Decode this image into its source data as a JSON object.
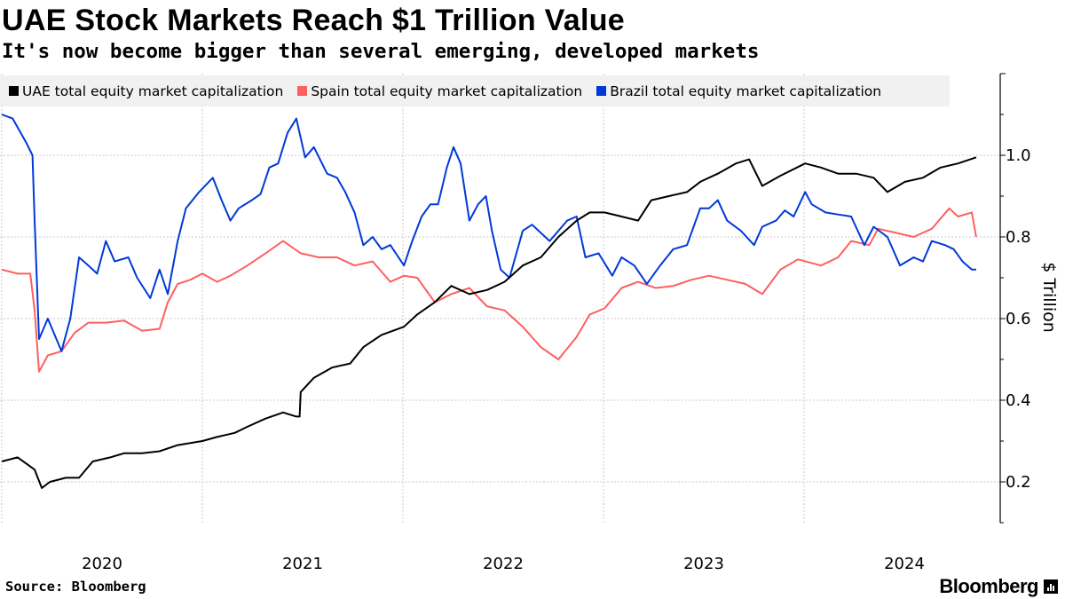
{
  "header": {
    "title": "UAE Stock Markets Reach $1 Trillion Value",
    "subtitle": "It's now become bigger than several emerging, developed markets"
  },
  "footer": {
    "source": "Source: Bloomberg",
    "logo": "Bloomberg"
  },
  "chart_data": {
    "type": "line",
    "title": "UAE Stock Markets Reach $1 Trillion Value",
    "subtitle": "It's now become bigger than several emerging, developed markets",
    "ylabel": "$ Trillion",
    "xlabel": "",
    "y_axis_side": "right",
    "ylim": [
      0.1,
      1.2
    ],
    "yticks": [
      "0.2",
      "0.4",
      "0.6",
      "0.8",
      "1.0"
    ],
    "xlim": [
      "2020-01-01",
      "2024-12-31"
    ],
    "xticks": [
      "2020",
      "2021",
      "2022",
      "2023",
      "2024"
    ],
    "grid": true,
    "legend_placement": "top",
    "series": [
      {
        "name": "UAE total equity market capitalization",
        "color": "#000000",
        "points": [
          [
            "2020-01-01",
            0.25
          ],
          [
            "2020-01-30",
            0.26
          ],
          [
            "2020-03-01",
            0.23
          ],
          [
            "2020-03-14",
            0.185
          ],
          [
            "2020-03-29",
            0.2
          ],
          [
            "2020-04-27",
            0.21
          ],
          [
            "2020-05-21",
            0.21
          ],
          [
            "2020-06-15",
            0.25
          ],
          [
            "2020-07-17",
            0.26
          ],
          [
            "2020-08-11",
            0.27
          ],
          [
            "2020-09-13",
            0.27
          ],
          [
            "2020-10-15",
            0.275
          ],
          [
            "2020-11-17",
            0.29
          ],
          [
            "2021-01-01",
            0.3
          ],
          [
            "2021-01-28",
            0.31
          ],
          [
            "2021-03-01",
            0.32
          ],
          [
            "2021-03-24",
            0.335
          ],
          [
            "2021-04-26",
            0.355
          ],
          [
            "2021-05-28",
            0.37
          ],
          [
            "2021-06-21",
            0.36
          ],
          [
            "2021-06-27",
            0.36
          ],
          [
            "2021-06-29",
            0.42
          ],
          [
            "2021-07-23",
            0.455
          ],
          [
            "2021-08-25",
            0.48
          ],
          [
            "2021-09-27",
            0.49
          ],
          [
            "2021-10-21",
            0.53
          ],
          [
            "2021-11-23",
            0.56
          ],
          [
            "2022-01-03",
            0.58
          ],
          [
            "2022-01-27",
            0.61
          ],
          [
            "2022-02-28",
            0.64
          ],
          [
            "2022-03-30",
            0.68
          ],
          [
            "2022-05-02",
            0.66
          ],
          [
            "2022-06-03",
            0.67
          ],
          [
            "2022-07-05",
            0.69
          ],
          [
            "2022-08-07",
            0.73
          ],
          [
            "2022-09-09",
            0.75
          ],
          [
            "2022-10-11",
            0.8
          ],
          [
            "2022-11-13",
            0.84
          ],
          [
            "2022-12-07",
            0.86
          ],
          [
            "2023-01-03",
            0.86
          ],
          [
            "2023-02-03",
            0.85
          ],
          [
            "2023-03-05",
            0.84
          ],
          [
            "2023-03-29",
            0.89
          ],
          [
            "2023-04-30",
            0.9
          ],
          [
            "2023-06-02",
            0.91
          ],
          [
            "2023-06-26",
            0.935
          ],
          [
            "2023-07-28",
            0.955
          ],
          [
            "2023-08-30",
            0.98
          ],
          [
            "2023-09-23",
            0.99
          ],
          [
            "2023-10-17",
            0.925
          ],
          [
            "2023-11-19",
            0.95
          ],
          [
            "2024-01-03",
            0.98
          ],
          [
            "2024-02-01",
            0.97
          ],
          [
            "2024-03-03",
            0.955
          ],
          [
            "2024-04-05",
            0.955
          ],
          [
            "2024-05-07",
            0.945
          ],
          [
            "2024-06-01",
            0.91
          ],
          [
            "2024-07-03",
            0.935
          ],
          [
            "2024-08-05",
            0.945
          ],
          [
            "2024-09-06",
            0.97
          ],
          [
            "2024-10-08",
            0.98
          ],
          [
            "2024-11-10",
            0.995
          ]
        ]
      },
      {
        "name": "Spain total equity market capitalization",
        "color": "#ff5f5f",
        "points": [
          [
            "2020-01-01",
            0.72
          ],
          [
            "2020-01-30",
            0.71
          ],
          [
            "2020-02-22",
            0.71
          ],
          [
            "2020-03-01",
            0.62
          ],
          [
            "2020-03-09",
            0.47
          ],
          [
            "2020-03-25",
            0.51
          ],
          [
            "2020-04-19",
            0.52
          ],
          [
            "2020-05-13",
            0.565
          ],
          [
            "2020-06-07",
            0.59
          ],
          [
            "2020-07-09",
            0.59
          ],
          [
            "2020-08-11",
            0.595
          ],
          [
            "2020-09-13",
            0.57
          ],
          [
            "2020-10-15",
            0.575
          ],
          [
            "2020-10-30",
            0.64
          ],
          [
            "2020-11-17",
            0.685
          ],
          [
            "2020-12-10",
            0.695
          ],
          [
            "2021-01-01",
            0.71
          ],
          [
            "2021-01-28",
            0.69
          ],
          [
            "2021-02-21",
            0.705
          ],
          [
            "2021-03-24",
            0.73
          ],
          [
            "2021-04-26",
            0.76
          ],
          [
            "2021-05-28",
            0.79
          ],
          [
            "2021-06-29",
            0.76
          ],
          [
            "2021-08-01",
            0.75
          ],
          [
            "2021-09-03",
            0.75
          ],
          [
            "2021-10-05",
            0.73
          ],
          [
            "2021-11-07",
            0.74
          ],
          [
            "2021-12-09",
            0.69
          ],
          [
            "2022-01-03",
            0.705
          ],
          [
            "2022-01-27",
            0.7
          ],
          [
            "2022-02-28",
            0.64
          ],
          [
            "2022-03-30",
            0.66
          ],
          [
            "2022-05-02",
            0.675
          ],
          [
            "2022-06-03",
            0.63
          ],
          [
            "2022-07-05",
            0.62
          ],
          [
            "2022-08-07",
            0.58
          ],
          [
            "2022-09-09",
            0.53
          ],
          [
            "2022-10-11",
            0.5
          ],
          [
            "2022-11-13",
            0.555
          ],
          [
            "2022-12-07",
            0.61
          ],
          [
            "2023-01-03",
            0.625
          ],
          [
            "2023-02-03",
            0.675
          ],
          [
            "2023-03-05",
            0.69
          ],
          [
            "2023-04-06",
            0.675
          ],
          [
            "2023-05-08",
            0.68
          ],
          [
            "2023-06-10",
            0.695
          ],
          [
            "2023-07-12",
            0.705
          ],
          [
            "2023-08-14",
            0.695
          ],
          [
            "2023-09-16",
            0.685
          ],
          [
            "2023-10-17",
            0.66
          ],
          [
            "2023-11-19",
            0.72
          ],
          [
            "2023-12-21",
            0.745
          ],
          [
            "2024-02-01",
            0.73
          ],
          [
            "2024-03-03",
            0.75
          ],
          [
            "2024-03-27",
            0.79
          ],
          [
            "2024-04-29",
            0.78
          ],
          [
            "2024-05-15",
            0.82
          ],
          [
            "2024-06-17",
            0.81
          ],
          [
            "2024-07-19",
            0.8
          ],
          [
            "2024-08-21",
            0.82
          ],
          [
            "2024-09-22",
            0.87
          ],
          [
            "2024-10-08",
            0.85
          ],
          [
            "2024-11-02",
            0.86
          ],
          [
            "2024-11-10",
            0.8
          ]
        ]
      },
      {
        "name": "Brazil total equity market capitalization",
        "color": "#0039d9",
        "points": [
          [
            "2020-01-01",
            1.1
          ],
          [
            "2020-01-21",
            1.09
          ],
          [
            "2020-02-15",
            1.03
          ],
          [
            "2020-02-26",
            1.0
          ],
          [
            "2020-03-01",
            0.84
          ],
          [
            "2020-03-09",
            0.55
          ],
          [
            "2020-03-25",
            0.6
          ],
          [
            "2020-04-19",
            0.52
          ],
          [
            "2020-05-05",
            0.6
          ],
          [
            "2020-05-21",
            0.75
          ],
          [
            "2020-06-07",
            0.73
          ],
          [
            "2020-06-23",
            0.71
          ],
          [
            "2020-07-09",
            0.79
          ],
          [
            "2020-07-25",
            0.74
          ],
          [
            "2020-08-19",
            0.75
          ],
          [
            "2020-09-04",
            0.7
          ],
          [
            "2020-09-28",
            0.65
          ],
          [
            "2020-10-15",
            0.72
          ],
          [
            "2020-10-30",
            0.66
          ],
          [
            "2020-11-17",
            0.79
          ],
          [
            "2020-12-02",
            0.87
          ],
          [
            "2020-12-26",
            0.91
          ],
          [
            "2021-01-20",
            0.945
          ],
          [
            "2021-02-05",
            0.89
          ],
          [
            "2021-02-21",
            0.84
          ],
          [
            "2021-03-08",
            0.87
          ],
          [
            "2021-04-01",
            0.89
          ],
          [
            "2021-04-17",
            0.905
          ],
          [
            "2021-05-03",
            0.97
          ],
          [
            "2021-05-19",
            0.98
          ],
          [
            "2021-06-05",
            1.055
          ],
          [
            "2021-06-21",
            1.09
          ],
          [
            "2021-07-07",
            0.995
          ],
          [
            "2021-07-23",
            1.02
          ],
          [
            "2021-08-16",
            0.955
          ],
          [
            "2021-09-03",
            0.945
          ],
          [
            "2021-09-18",
            0.91
          ],
          [
            "2021-10-05",
            0.86
          ],
          [
            "2021-10-21",
            0.78
          ],
          [
            "2021-11-07",
            0.8
          ],
          [
            "2021-11-23",
            0.77
          ],
          [
            "2021-12-09",
            0.78
          ],
          [
            "2022-01-03",
            0.73
          ],
          [
            "2022-01-18",
            0.79
          ],
          [
            "2022-02-04",
            0.85
          ],
          [
            "2022-02-20",
            0.88
          ],
          [
            "2022-03-06",
            0.88
          ],
          [
            "2022-03-22",
            0.97
          ],
          [
            "2022-04-03",
            1.02
          ],
          [
            "2022-04-16",
            0.98
          ],
          [
            "2022-05-02",
            0.84
          ],
          [
            "2022-05-18",
            0.88
          ],
          [
            "2022-06-01",
            0.9
          ],
          [
            "2022-06-12",
            0.815
          ],
          [
            "2022-06-28",
            0.72
          ],
          [
            "2022-07-14",
            0.7
          ],
          [
            "2022-08-07",
            0.815
          ],
          [
            "2022-08-24",
            0.83
          ],
          [
            "2022-09-25",
            0.79
          ],
          [
            "2022-10-27",
            0.84
          ],
          [
            "2022-11-13",
            0.85
          ],
          [
            "2022-11-29",
            0.75
          ],
          [
            "2022-12-23",
            0.76
          ],
          [
            "2023-01-17",
            0.705
          ],
          [
            "2023-02-03",
            0.75
          ],
          [
            "2023-02-26",
            0.73
          ],
          [
            "2023-03-21",
            0.685
          ],
          [
            "2023-04-14",
            0.73
          ],
          [
            "2023-05-08",
            0.77
          ],
          [
            "2023-06-02",
            0.78
          ],
          [
            "2023-06-26",
            0.87
          ],
          [
            "2023-07-12",
            0.87
          ],
          [
            "2023-07-28",
            0.89
          ],
          [
            "2023-08-14",
            0.84
          ],
          [
            "2023-09-08",
            0.815
          ],
          [
            "2023-10-02",
            0.78
          ],
          [
            "2023-10-17",
            0.825
          ],
          [
            "2023-11-11",
            0.84
          ],
          [
            "2023-11-27",
            0.865
          ],
          [
            "2023-12-13",
            0.85
          ],
          [
            "2024-01-03",
            0.91
          ],
          [
            "2024-01-15",
            0.88
          ],
          [
            "2024-02-09",
            0.86
          ],
          [
            "2024-03-03",
            0.855
          ],
          [
            "2024-03-27",
            0.85
          ],
          [
            "2024-04-20",
            0.78
          ],
          [
            "2024-05-07",
            0.825
          ],
          [
            "2024-06-01",
            0.8
          ],
          [
            "2024-06-24",
            0.73
          ],
          [
            "2024-07-19",
            0.75
          ],
          [
            "2024-08-05",
            0.74
          ],
          [
            "2024-08-21",
            0.79
          ],
          [
            "2024-09-14",
            0.78
          ],
          [
            "2024-09-30",
            0.77
          ],
          [
            "2024-10-16",
            0.74
          ],
          [
            "2024-11-02",
            0.72
          ],
          [
            "2024-11-10",
            0.72
          ]
        ]
      }
    ]
  }
}
